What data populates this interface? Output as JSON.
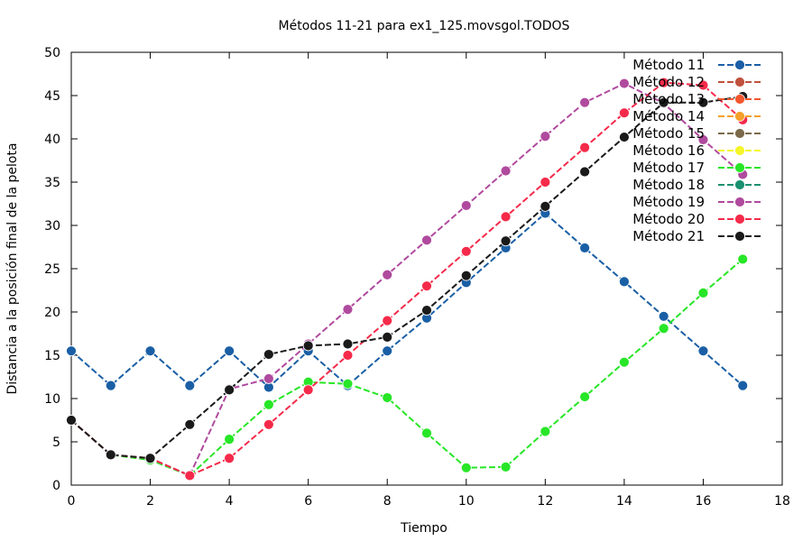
{
  "chart_data": {
    "type": "line",
    "title": "Métodos 11-21 para ex1_125.movsgol.TODOS",
    "xlabel": "Tiempo",
    "ylabel": "Distancia a la posición final de la pelota",
    "xlim": [
      0,
      18
    ],
    "ylim": [
      0,
      50
    ],
    "xticks": [
      0,
      2,
      4,
      6,
      8,
      10,
      12,
      14,
      16,
      18
    ],
    "yticks": [
      0,
      5,
      10,
      15,
      20,
      25,
      30,
      35,
      40,
      45,
      50
    ],
    "grid": false,
    "legend_position": "top-right",
    "x": [
      0,
      1,
      2,
      3,
      4,
      5,
      6,
      7,
      8,
      9,
      10,
      11,
      12,
      13,
      14,
      15,
      16,
      17
    ],
    "series": [
      {
        "name": "Método 11",
        "color": "#1a5fa5",
        "values": [
          15.5,
          11.5,
          15.5,
          11.5,
          15.5,
          11.3,
          15.5,
          11.5,
          15.5,
          19.3,
          23.4,
          27.4,
          31.4,
          27.4,
          23.5,
          19.5,
          15.5,
          11.5
        ]
      },
      {
        "name": "Método 12",
        "color": "#c0503c",
        "values": [
          null,
          null,
          null,
          null,
          null,
          null,
          null,
          null,
          null,
          null,
          null,
          null,
          null,
          null,
          null,
          null,
          null,
          null
        ]
      },
      {
        "name": "Método 13",
        "color": "#f2562e",
        "values": [
          null,
          null,
          null,
          null,
          null,
          null,
          null,
          null,
          null,
          null,
          null,
          null,
          null,
          null,
          null,
          null,
          null,
          null
        ]
      },
      {
        "name": "Método 14",
        "color": "#f5a02a",
        "values": [
          null,
          null,
          null,
          null,
          null,
          null,
          null,
          null,
          null,
          null,
          null,
          null,
          null,
          null,
          null,
          null,
          null,
          null
        ]
      },
      {
        "name": "Método 15",
        "color": "#7a6a4a",
        "values": [
          null,
          null,
          null,
          null,
          null,
          null,
          null,
          null,
          null,
          null,
          null,
          null,
          null,
          null,
          null,
          null,
          null,
          null
        ]
      },
      {
        "name": "Método 16",
        "color": "#f5f52a",
        "values": [
          null,
          null,
          null,
          null,
          null,
          null,
          null,
          null,
          null,
          null,
          null,
          null,
          null,
          null,
          null,
          null,
          null,
          null
        ]
      },
      {
        "name": "Método 17",
        "color": "#27e627",
        "values": [
          7.5,
          3.5,
          2.9,
          1.1,
          5.3,
          9.3,
          11.9,
          11.7,
          10.1,
          6.0,
          2.0,
          2.1,
          6.2,
          10.2,
          14.2,
          18.1,
          22.2,
          26.1
        ]
      },
      {
        "name": "Método 18",
        "color": "#199070",
        "values": [
          null,
          null,
          null,
          null,
          null,
          null,
          null,
          null,
          null,
          null,
          null,
          null,
          null,
          null,
          null,
          null,
          null,
          null
        ]
      },
      {
        "name": "Método 19",
        "color": "#b04a9e",
        "values": [
          7.5,
          3.5,
          3.1,
          1.1,
          11.1,
          12.3,
          16.3,
          20.3,
          24.3,
          28.3,
          32.3,
          36.3,
          40.3,
          44.2,
          46.4,
          44.1,
          39.9,
          35.9
        ]
      },
      {
        "name": "Método 20",
        "color": "#f52a4a",
        "values": [
          7.5,
          3.5,
          3.1,
          1.1,
          3.1,
          7.0,
          11.0,
          15.0,
          19.0,
          23.0,
          27.0,
          31.0,
          35.0,
          39.0,
          43.0,
          46.5,
          46.2,
          42.2
        ]
      },
      {
        "name": "Método 21",
        "color": "#1a1a1a",
        "values": [
          7.5,
          3.5,
          3.1,
          7.0,
          11.0,
          15.1,
          16.1,
          16.3,
          17.1,
          20.2,
          24.2,
          28.2,
          32.2,
          36.2,
          40.2,
          44.2,
          44.2,
          44.9
        ]
      }
    ]
  }
}
